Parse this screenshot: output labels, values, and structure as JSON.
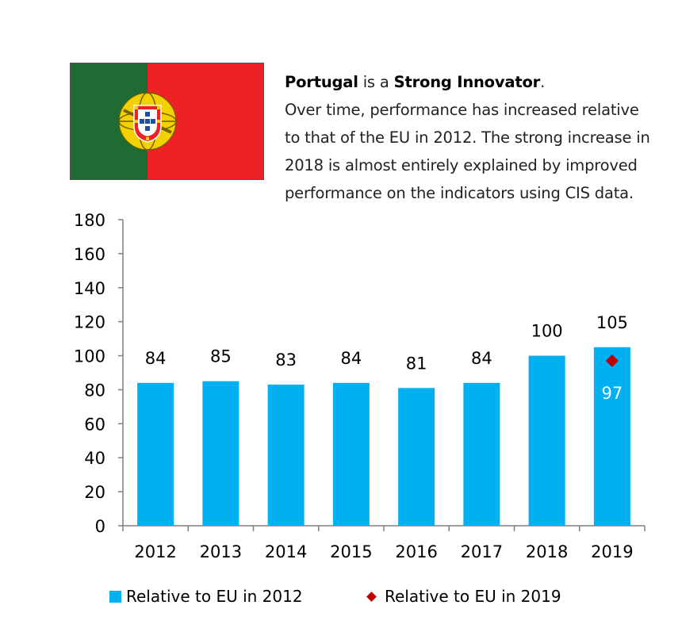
{
  "intro": {
    "country": "Portugal",
    "is_a": " is a ",
    "group": "Strong Innovator",
    "period": ".",
    "lines": [
      "Over time, performance has increased relative",
      "to that of the EU in 2012. The strong increase in",
      "2018 is almost entirely explained by improved",
      "performance on the indicators using CIS data."
    ]
  },
  "flag": {
    "icon": "portugal-flag-icon",
    "colors": {
      "green": "#1e6b34",
      "red": "#ee2124",
      "gold": "#f3d000"
    }
  },
  "chart_data": {
    "type": "bar",
    "categories": [
      "2012",
      "2013",
      "2014",
      "2015",
      "2016",
      "2017",
      "2018",
      "2019"
    ],
    "series": [
      {
        "name": "Relative to EU in 2012",
        "type": "bar",
        "values": [
          84,
          85,
          83,
          84,
          81,
          84,
          100,
          105
        ],
        "color": "#00b0f0"
      },
      {
        "name": "Relative to EU in 2019",
        "type": "scatter",
        "marker": "diamond",
        "x": [
          "2019"
        ],
        "values": [
          97
        ],
        "color": "#c00000"
      }
    ],
    "data_labels": {
      "bars": [
        "84",
        "85",
        "83",
        "84",
        "81",
        "84",
        "100",
        "105"
      ],
      "point": "97"
    },
    "ylim": [
      0,
      180
    ],
    "yticks": [
      0,
      20,
      40,
      60,
      80,
      100,
      120,
      140,
      160,
      180
    ],
    "grid": false,
    "legend": "bottom",
    "title": "",
    "xlabel": "",
    "ylabel": ""
  }
}
